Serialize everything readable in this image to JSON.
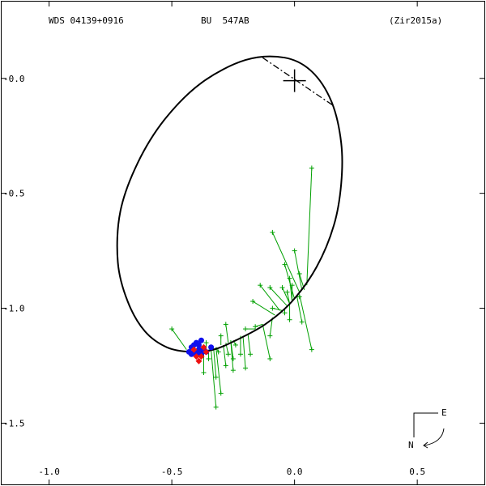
{
  "header": {
    "left": "WDS 04139+0916",
    "center": "BU  547AB",
    "right": "(Zir2015a)"
  },
  "compass": {
    "east": "E",
    "north": "N"
  },
  "chart_data": {
    "type": "scatter",
    "xlim": [
      -1.2,
      0.78
    ],
    "ylim": [
      0.2,
      -1.65
    ],
    "x_ticks": [
      {
        "value": -1.0,
        "label": "-1.0"
      },
      {
        "value": -0.5,
        "label": "-0.5"
      },
      {
        "value": 0.0,
        "label": "0.0"
      },
      {
        "value": 0.5,
        "label": "0.5"
      }
    ],
    "y_ticks": [
      {
        "value": 0.0,
        "label": "-0.0"
      },
      {
        "value": -0.5,
        "label": "-0.5"
      },
      {
        "value": -1.0,
        "label": "-1.0"
      },
      {
        "value": -1.5,
        "label": "-1.5"
      }
    ],
    "colors": {
      "orbit": "#000000",
      "measure": "#00a000",
      "residual": "#00a000",
      "blue_points": "#1010ee",
      "red_points": "#ee1010",
      "node_line": "#000000"
    },
    "orbit": [
      [
        -0.04,
        0.09
      ],
      [
        0.07,
        0.03
      ],
      [
        0.15,
        -0.1
      ],
      [
        0.19,
        -0.28
      ],
      [
        0.19,
        -0.46
      ],
      [
        0.16,
        -0.64
      ],
      [
        0.09,
        -0.82
      ],
      [
        -0.01,
        -0.97
      ],
      [
        -0.12,
        -1.07
      ],
      [
        -0.24,
        -1.14
      ],
      [
        -0.33,
        -1.18
      ],
      [
        -0.42,
        -1.19
      ],
      [
        -0.52,
        -1.17
      ],
      [
        -0.61,
        -1.1
      ],
      [
        -0.68,
        -0.97
      ],
      [
        -0.72,
        -0.8
      ],
      [
        -0.71,
        -0.58
      ],
      [
        -0.64,
        -0.37
      ],
      [
        -0.53,
        -0.18
      ],
      [
        -0.38,
        -0.02
      ],
      [
        -0.2,
        0.08
      ],
      [
        -0.04,
        0.09
      ]
    ],
    "primary": {
      "x": 0.0,
      "y": -0.01
    },
    "node_line": [
      [
        -0.13,
        0.09
      ],
      [
        0.16,
        -0.12
      ]
    ],
    "measurements": [
      {
        "obs": [
          0.07,
          -0.39
        ],
        "calc": [
          0.05,
          -0.9
        ]
      },
      {
        "obs": [
          -0.09,
          -0.67
        ],
        "calc": [
          0.02,
          -0.93
        ]
      },
      {
        "obs": [
          0.0,
          -0.75
        ],
        "calc": [
          0.03,
          -0.92
        ]
      },
      {
        "obs": [
          -0.04,
          -0.81
        ],
        "calc": [
          0.0,
          -0.96
        ]
      },
      {
        "obs": [
          -0.02,
          -0.87
        ],
        "calc": [
          -0.01,
          -0.97
        ]
      },
      {
        "obs": [
          -0.01,
          -0.9
        ],
        "calc": [
          -0.01,
          -0.97
        ]
      },
      {
        "obs": [
          -0.05,
          -0.91
        ],
        "calc": [
          -0.02,
          -0.98
        ]
      },
      {
        "obs": [
          -0.1,
          -0.91
        ],
        "calc": [
          -0.03,
          -0.99
        ]
      },
      {
        "obs": [
          0.02,
          -0.95
        ],
        "calc": [
          0.01,
          -0.95
        ]
      },
      {
        "obs": [
          -0.14,
          -0.9
        ],
        "calc": [
          -0.06,
          -1.01
        ]
      },
      {
        "obs": [
          -0.17,
          -0.97
        ],
        "calc": [
          -0.08,
          -1.03
        ]
      },
      {
        "obs": [
          -0.09,
          -1.0
        ],
        "calc": [
          -0.05,
          -1.01
        ]
      },
      {
        "obs": [
          -0.04,
          -1.02
        ],
        "calc": [
          -0.04,
          -1.0
        ]
      },
      {
        "obs": [
          0.03,
          -1.06
        ],
        "calc": [
          0.01,
          -0.95
        ]
      },
      {
        "obs": [
          -0.02,
          -1.05
        ],
        "calc": [
          -0.02,
          -0.98
        ]
      },
      {
        "obs": [
          -0.1,
          -1.12
        ],
        "calc": [
          -0.09,
          -1.04
        ]
      },
      {
        "obs": [
          -0.16,
          -1.08
        ],
        "calc": [
          -0.13,
          -1.07
        ]
      },
      {
        "obs": [
          -0.2,
          -1.09
        ],
        "calc": [
          -0.16,
          -1.09
        ]
      },
      {
        "obs": [
          0.07,
          -1.18
        ],
        "calc": [
          0.02,
          -0.94
        ]
      },
      {
        "obs": [
          -0.1,
          -1.22
        ],
        "calc": [
          -0.13,
          -1.07
        ]
      },
      {
        "obs": [
          -0.2,
          -1.26
        ],
        "calc": [
          -0.21,
          -1.12
        ]
      },
      {
        "obs": [
          -0.18,
          -1.2
        ],
        "calc": [
          -0.19,
          -1.11
        ]
      },
      {
        "obs": [
          -0.28,
          -1.07
        ],
        "calc": [
          -0.27,
          -1.15
        ]
      },
      {
        "obs": [
          -0.3,
          -1.12
        ],
        "calc": [
          -0.3,
          -1.16
        ]
      },
      {
        "obs": [
          -0.24,
          -1.16
        ],
        "calc": [
          -0.25,
          -1.14
        ]
      },
      {
        "obs": [
          -0.25,
          -1.22
        ],
        "calc": [
          -0.26,
          -1.14
        ]
      },
      {
        "obs": [
          -0.28,
          -1.25
        ],
        "calc": [
          -0.29,
          -1.16
        ]
      },
      {
        "obs": [
          -0.31,
          -1.19
        ],
        "calc": [
          -0.32,
          -1.17
        ]
      },
      {
        "obs": [
          -0.3,
          -1.37
        ],
        "calc": [
          -0.32,
          -1.17
        ]
      },
      {
        "obs": [
          -0.32,
          -1.43
        ],
        "calc": [
          -0.34,
          -1.18
        ]
      },
      {
        "obs": [
          -0.32,
          -1.3
        ],
        "calc": [
          -0.33,
          -1.17
        ]
      },
      {
        "obs": [
          -0.35,
          -1.22
        ],
        "calc": [
          -0.35,
          -1.18
        ]
      },
      {
        "obs": [
          -0.37,
          -1.28
        ],
        "calc": [
          -0.37,
          -1.18
        ]
      },
      {
        "obs": [
          -0.36,
          -1.15
        ],
        "calc": [
          -0.36,
          -1.18
        ]
      },
      {
        "obs": [
          -0.5,
          -1.09
        ],
        "calc": [
          -0.44,
          -1.18
        ]
      },
      {
        "obs": [
          -0.27,
          -1.2
        ],
        "calc": [
          -0.28,
          -1.15
        ]
      },
      {
        "obs": [
          -0.25,
          -1.27
        ],
        "calc": [
          -0.26,
          -1.14
        ]
      },
      {
        "obs": [
          -0.22,
          -1.2
        ],
        "calc": [
          -0.22,
          -1.12
        ]
      },
      {
        "obs": [
          -0.03,
          -0.93
        ],
        "calc": [
          -0.02,
          -0.98
        ]
      },
      {
        "obs": [
          0.02,
          -0.85
        ],
        "calc": [
          0.04,
          -0.92
        ]
      }
    ],
    "blue_points": [
      [
        -0.42,
        -1.17
      ],
      [
        -0.4,
        -1.15
      ],
      [
        -0.38,
        -1.14
      ],
      [
        -0.41,
        -1.19
      ],
      [
        -0.39,
        -1.18
      ],
      [
        -0.43,
        -1.19
      ],
      [
        -0.37,
        -1.18
      ],
      [
        -0.4,
        -1.2
      ],
      [
        -0.34,
        -1.17
      ],
      [
        -0.39,
        -1.16
      ],
      [
        -0.41,
        -1.16
      ],
      [
        -0.36,
        -1.19
      ],
      [
        -0.38,
        -1.2
      ],
      [
        -0.42,
        -1.2
      ]
    ],
    "red_points": [
      [
        -0.39,
        -1.23
      ],
      [
        -0.4,
        -1.21
      ],
      [
        -0.36,
        -1.19
      ],
      [
        -0.37,
        -1.17
      ],
      [
        -0.38,
        -1.21
      ],
      [
        -0.41,
        -1.18
      ]
    ]
  }
}
